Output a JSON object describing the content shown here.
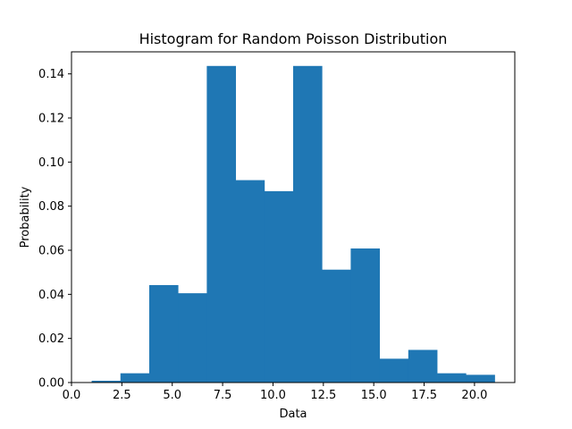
{
  "chart_data": {
    "type": "bar",
    "title": "Histogram for Random Poisson Distribution",
    "xlabel": "Data",
    "ylabel": "Probability",
    "xlim": [
      0.0,
      22.0
    ],
    "ylim": [
      0.0,
      0.15
    ],
    "xticks": [
      "0.0",
      "2.5",
      "5.0",
      "7.5",
      "10.0",
      "12.5",
      "15.0",
      "17.5",
      "20.0"
    ],
    "yticks": [
      "0.00",
      "0.02",
      "0.04",
      "0.06",
      "0.08",
      "0.10",
      "0.12",
      "0.14"
    ],
    "bin_edges": [
      1.0,
      2.4286,
      3.8571,
      5.2857,
      6.7143,
      8.1429,
      9.5714,
      11.0,
      12.4286,
      13.8571,
      15.2857,
      16.7143,
      18.1429,
      19.5714,
      21.0
    ],
    "values": [
      0.0008,
      0.0042,
      0.0442,
      0.0405,
      0.1436,
      0.0918,
      0.0868,
      0.1436,
      0.0512,
      0.0608,
      0.0108,
      0.0148,
      0.0042,
      0.0035
    ],
    "bar_color": "#1f77b4",
    "grid": false,
    "legend": "none"
  }
}
